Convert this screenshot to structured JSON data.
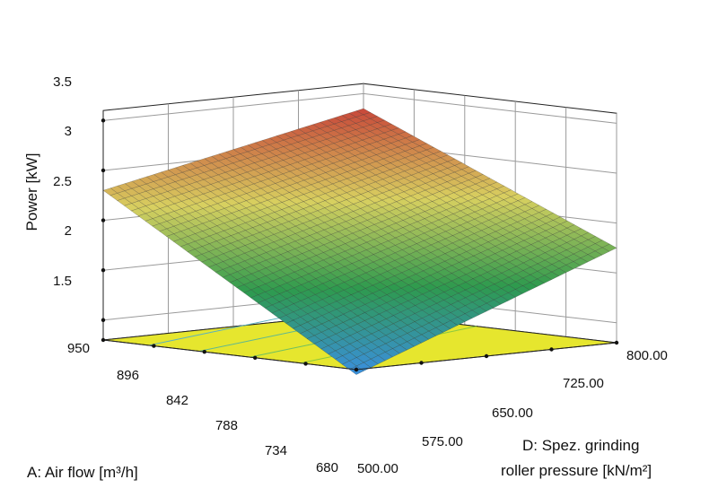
{
  "chart_data": {
    "type": "surface3d",
    "title": "",
    "z_axis": {
      "label": "Power [kW]",
      "ticks": [
        "1.5",
        "2",
        "2.5",
        "3",
        "3.5"
      ],
      "range": [
        1.3,
        3.6
      ]
    },
    "a_axis": {
      "label": "A: Air flow [m³/h]",
      "ticks": [
        "950",
        "896",
        "842",
        "788",
        "734",
        "680"
      ],
      "range": [
        680,
        950
      ]
    },
    "d_axis": {
      "label_line1": "D: Spez. grinding",
      "label_line2": "roller pressure [kN/m²]",
      "ticks": [
        "500.00",
        "575.00",
        "650.00",
        "725.00",
        "800.00"
      ],
      "range": [
        500,
        800
      ]
    },
    "surface": {
      "corners": [
        {
          "air_flow": 680,
          "pressure": 500,
          "power": 1.25
        },
        {
          "air_flow": 950,
          "pressure": 500,
          "power": 2.8
        },
        {
          "air_flow": 950,
          "pressure": 800,
          "power": 3.35
        },
        {
          "air_flow": 680,
          "pressure": 800,
          "power": 2.25
        }
      ],
      "colormap": [
        "#3a8fe0",
        "#2e9a4e",
        "#d8d060",
        "#c8483a"
      ]
    },
    "floor_color": "#e6e62e",
    "grid": true
  }
}
